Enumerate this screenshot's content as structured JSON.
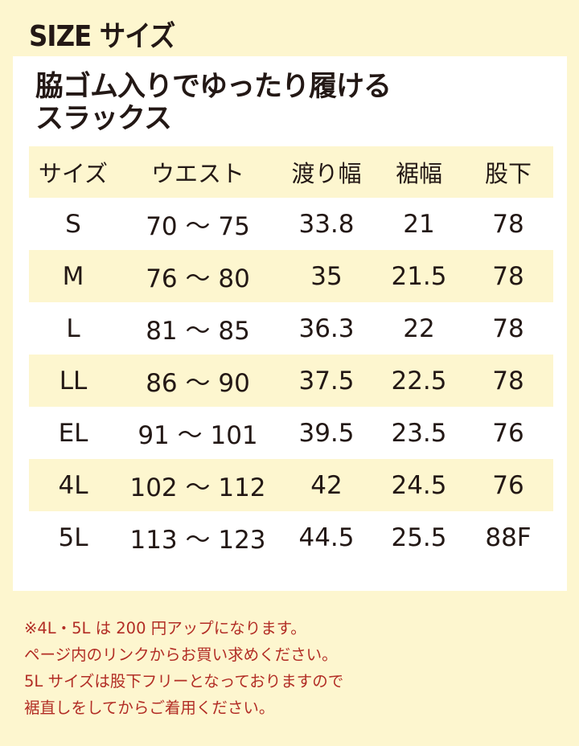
{
  "title": "SIZE サイズ",
  "heading": [
    "脇ゴム入りでゆったり履ける",
    "スラックス"
  ],
  "table": {
    "headers": [
      "サイズ",
      "ウエスト",
      "渡り幅",
      "裾幅",
      "股下"
    ],
    "rows": [
      [
        "S",
        "70 ～ 75",
        "33.8",
        "21",
        "78"
      ],
      [
        "M",
        "76 ～ 80",
        "35",
        "21.5",
        "78"
      ],
      [
        "L",
        "81 ～ 85",
        "36.3",
        "22",
        "78"
      ],
      [
        "LL",
        "86 ～ 90",
        "37.5",
        "22.5",
        "78"
      ],
      [
        "EL",
        "91 ～ 101",
        "39.5",
        "23.5",
        "76"
      ],
      [
        "4L",
        "102 ～ 112",
        "42",
        "24.5",
        "76"
      ],
      [
        "5L",
        "113 ～ 123",
        "44.5",
        "25.5",
        "88F"
      ]
    ]
  },
  "notes": [
    "※4L・5L は 200 円アップになります。",
    "ページ内のリンクからお買い求めください。",
    "5L サイズは股下フリーとなっておりますので",
    "裾直しをしてからご着用ください。"
  ],
  "colors": {
    "background": "#fdf6cf",
    "note_text": "#b22d25",
    "text": "#231815"
  }
}
